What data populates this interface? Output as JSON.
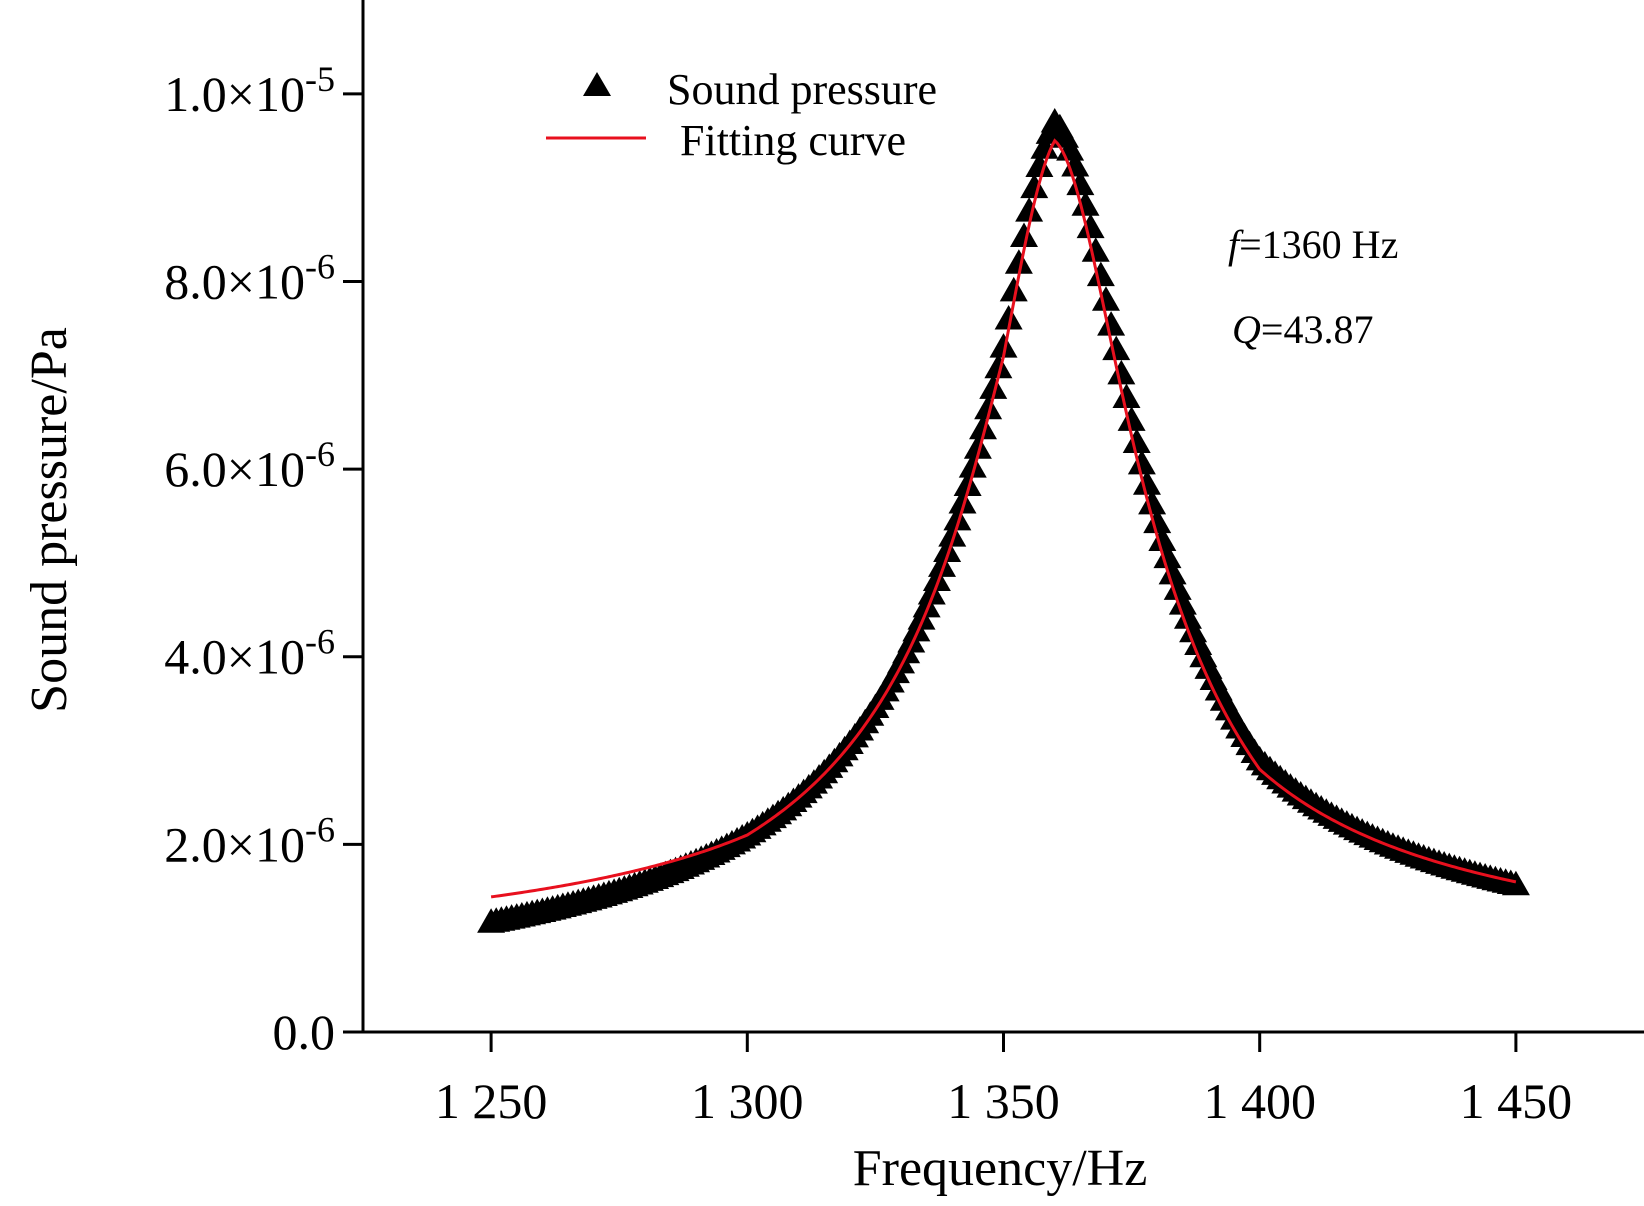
{
  "chart_data": {
    "type": "scatter",
    "xlabel": "Frequency/Hz",
    "ylabel": "Sound pressure/Pa",
    "xlim": [
      1225,
      1475
    ],
    "ylim": [
      0,
      1.1e-05
    ],
    "x_ticks": [
      1250,
      1300,
      1350,
      1400,
      1450
    ],
    "x_tick_labels": [
      "1 250",
      "1 300",
      "1 350",
      "1 400",
      "1 450"
    ],
    "y_ticks": [
      {
        "value": 0,
        "mantissa": "0.0",
        "exponent": ""
      },
      {
        "value": 2e-06,
        "mantissa": "2.0×10",
        "exponent": "-6"
      },
      {
        "value": 4e-06,
        "mantissa": "4.0×10",
        "exponent": "-6"
      },
      {
        "value": 6e-06,
        "mantissa": "6.0×10",
        "exponent": "-6"
      },
      {
        "value": 8e-06,
        "mantissa": "8.0×10",
        "exponent": "-6"
      },
      {
        "value": 1e-05,
        "mantissa": "1.0×10",
        "exponent": "-5"
      }
    ],
    "grid": false,
    "legend_position": "top-left",
    "series": [
      {
        "name": "Sound pressure",
        "kind": "markers",
        "marker": "filled-triangle",
        "color": "#000000",
        "x_range": [
          1250,
          1450
        ],
        "x_step": 1,
        "peak_frequency": 1360,
        "peak_value": 9.7e-06,
        "values_at": [
          {
            "x": 1250,
            "y": 1.17e-06
          },
          {
            "x": 1300,
            "y": 2.1e-06
          },
          {
            "x": 1350,
            "y": 7.3e-06
          },
          {
            "x": 1360,
            "y": 9.7e-06
          },
          {
            "x": 1400,
            "y": 2.9e-06
          },
          {
            "x": 1450,
            "y": 1.57e-06
          }
        ]
      },
      {
        "name": "Fitting curve",
        "kind": "line",
        "color": "#e8101e",
        "x_range": [
          1250,
          1450
        ],
        "values_at": [
          {
            "x": 1250,
            "y": 1.44e-06
          },
          {
            "x": 1300,
            "y": 2.1e-06
          },
          {
            "x": 1350,
            "y": 7.2e-06
          },
          {
            "x": 1360,
            "y": 9.5e-06
          },
          {
            "x": 1400,
            "y": 2.8e-06
          },
          {
            "x": 1450,
            "y": 1.6e-06
          }
        ]
      }
    ],
    "annotations": {
      "freq_symbol": "f",
      "freq_text": "=1360 Hz",
      "q_symbol": "Q",
      "q_text": "=43.87"
    }
  }
}
